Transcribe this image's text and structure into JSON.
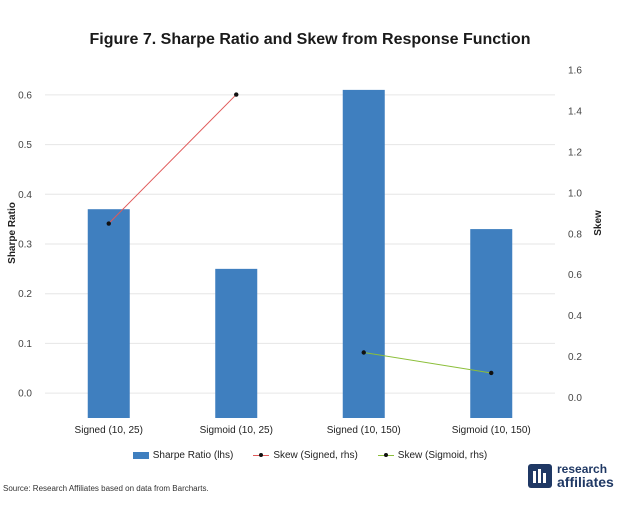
{
  "title": "Figure 7. Sharpe Ratio and Skew from Response Function",
  "source": "Source: Research Affiliates based on data from Barcharts.",
  "logo": {
    "line1": "research",
    "line2": "affiliates"
  },
  "colors": {
    "bar": "#3f7fbf",
    "skew_signed": "#e05a5a",
    "skew_sigmoid": "#8cbf3a",
    "marker": "#111111"
  },
  "chart_data": {
    "type": "bar",
    "categories": [
      "Signed (10, 25)",
      "Sigmoid (10, 25)",
      "Signed (10, 150)",
      "Sigmoid (10, 150)"
    ],
    "series": [
      {
        "name": "Sharpe Ratio (lhs)",
        "type": "bar",
        "axis": "left",
        "values": [
          0.37,
          0.25,
          0.61,
          0.33
        ]
      },
      {
        "name": "Skew (Signed, rhs)",
        "type": "line",
        "axis": "right",
        "values": [
          0.85,
          1.48,
          null,
          null
        ]
      },
      {
        "name": "Skew (Sigmoid, rhs)",
        "type": "line",
        "axis": "right",
        "values": [
          null,
          null,
          0.22,
          0.12
        ]
      }
    ],
    "ylabel": "Sharpe Ratio",
    "y2label": "Skew",
    "ylim": [
      -0.05,
      0.65
    ],
    "y2lim": [
      -0.1,
      1.6
    ],
    "yticks": [
      "0.0",
      "0.1",
      "0.2",
      "0.3",
      "0.4",
      "0.5",
      "0.6"
    ],
    "y2ticks": [
      "0.0",
      "0.2",
      "0.4",
      "0.6",
      "0.8",
      "1.0",
      "1.2",
      "1.4",
      "1.6"
    ],
    "grid": true,
    "legend": "bottom"
  }
}
